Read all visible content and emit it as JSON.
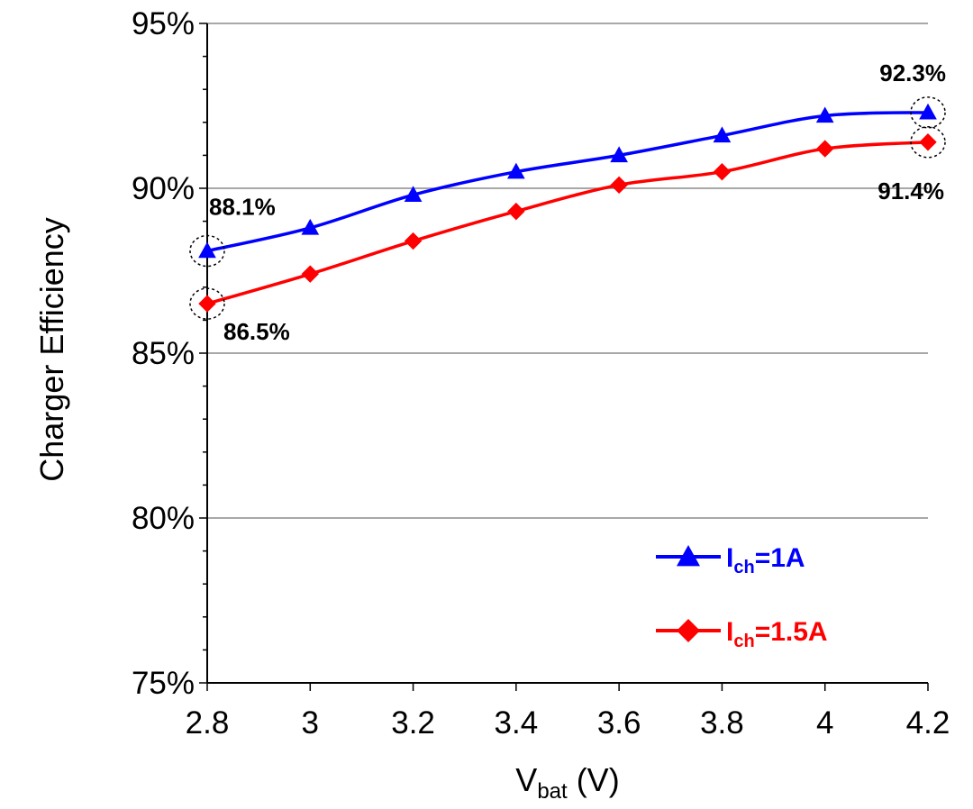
{
  "chart_data": {
    "type": "line",
    "xlabel": {
      "main": "V",
      "sub": "bat",
      "tail": " (V)"
    },
    "ylabel": "Charger Efficiency",
    "x": [
      2.8,
      3.0,
      3.2,
      3.4,
      3.6,
      3.8,
      4.0,
      4.2
    ],
    "x_tick_labels": [
      "2.8",
      "3",
      "3.2",
      "3.4",
      "3.6",
      "3.8",
      "4",
      "4.2"
    ],
    "xlim": [
      2.8,
      4.2
    ],
    "y_tick_values": [
      75,
      80,
      85,
      90,
      95
    ],
    "y_tick_labels": [
      "75%",
      "80%",
      "85%",
      "90%",
      "95%"
    ],
    "ylim": [
      75,
      95
    ],
    "grid": "horizontal",
    "legend_position": "bottom-right",
    "series": [
      {
        "name": {
          "main": "I",
          "sub": "ch",
          "tail": "=1A"
        },
        "color": "#0000ff",
        "marker": "triangle",
        "values": [
          88.1,
          88.8,
          89.8,
          90.5,
          91.0,
          91.6,
          92.2,
          92.3
        ]
      },
      {
        "name": {
          "main": "I",
          "sub": "ch",
          "tail": "=1.5A"
        },
        "color": "#ff0000",
        "marker": "diamond",
        "values": [
          86.5,
          87.4,
          88.4,
          89.3,
          90.1,
          90.5,
          91.2,
          91.4
        ]
      }
    ],
    "annotations": [
      {
        "text": "88.1%",
        "series": 0,
        "index": 0
      },
      {
        "text": "92.3%",
        "series": 0,
        "index": 7
      },
      {
        "text": "86.5%",
        "series": 1,
        "index": 0
      },
      {
        "text": "91.4%",
        "series": 1,
        "index": 7
      }
    ]
  }
}
